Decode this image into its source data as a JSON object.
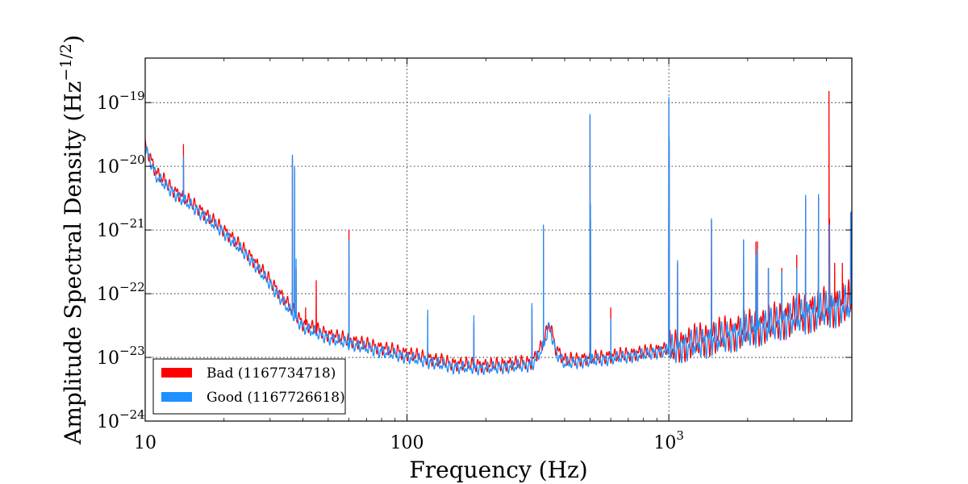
{
  "chart_data": {
    "type": "line",
    "xlabel": "Frequency (Hz)",
    "ylabel": "Amplitude Spectral Density (Hz",
    "ylabel_exponent": "−1/2",
    "ylabel_suffix": ")",
    "x_scale": "log",
    "y_scale": "log",
    "xlim": [
      10,
      5000
    ],
    "ylim": [
      1e-24,
      5e-19
    ],
    "grid": true,
    "legend_position": "lower-left",
    "x_ticks": [
      {
        "value": 10,
        "label": "10"
      },
      {
        "value": 100,
        "label": "100"
      },
      {
        "value": 1000,
        "label": "10",
        "sup": "3"
      }
    ],
    "y_ticks": [
      {
        "value": 1e-24,
        "label": "10",
        "sup": "−24"
      },
      {
        "value": 1e-23,
        "label": "10",
        "sup": "−23"
      },
      {
        "value": 1e-22,
        "label": "10",
        "sup": "−22"
      },
      {
        "value": 1e-21,
        "label": "10",
        "sup": "−21"
      },
      {
        "value": 1e-20,
        "label": "10",
        "sup": "−20"
      },
      {
        "value": 1e-19,
        "label": "10",
        "sup": "−19"
      }
    ],
    "series": [
      {
        "name": "Bad (1167734718)",
        "color": "#ff0000",
        "baseline": [
          [
            10,
            2.2e-20
          ],
          [
            11,
            8e-21
          ],
          [
            13,
            4e-21
          ],
          [
            15,
            2.7e-21
          ],
          [
            20,
            1e-21
          ],
          [
            25,
            4e-22
          ],
          [
            30,
            1.6e-22
          ],
          [
            35,
            7e-23
          ],
          [
            40,
            3.4e-23
          ],
          [
            50,
            2.3e-23
          ],
          [
            70,
            1.6e-23
          ],
          [
            100,
            1.15e-23
          ],
          [
            150,
            8e-24
          ],
          [
            200,
            7.5e-24
          ],
          [
            300,
            8.5e-24
          ],
          [
            330,
            1.6e-23
          ],
          [
            350,
            3.5e-23
          ],
          [
            370,
            1.4e-23
          ],
          [
            400,
            9e-24
          ],
          [
            600,
            1.05e-23
          ],
          [
            800,
            1.2e-23
          ],
          [
            1000,
            1.4e-23
          ],
          [
            1200,
            1.7e-23
          ],
          [
            1500,
            2.1e-23
          ],
          [
            2000,
            2.8e-23
          ],
          [
            2500,
            3.5e-23
          ],
          [
            3000,
            4.5e-23
          ],
          [
            4000,
            6e-23
          ],
          [
            5000,
            7.5e-23
          ]
        ],
        "lines": [
          [
            14,
            2.2e-20
          ],
          [
            36.5,
            1.4e-20
          ],
          [
            37.2,
            9e-21
          ],
          [
            37.7,
            2.5e-22
          ],
          [
            41,
            6e-23
          ],
          [
            45,
            1.6e-22
          ],
          [
            60,
            1e-21
          ],
          [
            120,
            4.5e-23
          ],
          [
            180,
            3.5e-23
          ],
          [
            300,
            6e-23
          ],
          [
            331.9,
            1.1e-21
          ],
          [
            500,
            6e-20
          ],
          [
            502,
            1.5e-21
          ],
          [
            600,
            6e-23
          ],
          [
            1000,
            1.1e-19
          ],
          [
            1003,
            2.5e-20
          ],
          [
            1080,
            3e-22
          ],
          [
            1455,
            1.4e-21
          ],
          [
            1930,
            7e-22
          ],
          [
            2150,
            6.5e-22
          ],
          [
            2180,
            6.5e-22
          ],
          [
            2400,
            2.5e-22
          ],
          [
            2700,
            2.5e-22
          ],
          [
            3080,
            4e-22
          ],
          [
            3330,
            3e-21
          ],
          [
            3730,
            3.2e-21
          ],
          [
            4090,
            1.5e-19
          ],
          [
            4110,
            1.5e-21
          ],
          [
            4300,
            3e-22
          ],
          [
            4600,
            3e-22
          ],
          [
            4950,
            1.8e-21
          ],
          [
            5000,
            2e-21
          ]
        ]
      },
      {
        "name": "Good (1167726618)",
        "color": "#1e90ff",
        "baseline": [
          [
            10,
            2e-20
          ],
          [
            11,
            7e-21
          ],
          [
            13,
            3.6e-21
          ],
          [
            15,
            2.4e-21
          ],
          [
            20,
            9e-22
          ],
          [
            25,
            3.6e-22
          ],
          [
            30,
            1.4e-22
          ],
          [
            35,
            6e-23
          ],
          [
            40,
            3e-23
          ],
          [
            50,
            2e-23
          ],
          [
            70,
            1.4e-23
          ],
          [
            100,
            1e-23
          ],
          [
            150,
            7e-24
          ],
          [
            200,
            6.7e-24
          ],
          [
            300,
            7.5e-24
          ],
          [
            330,
            1.4e-23
          ],
          [
            350,
            3.2e-23
          ],
          [
            370,
            1.2e-23
          ],
          [
            400,
            8e-24
          ],
          [
            600,
            9.5e-24
          ],
          [
            800,
            1.1e-23
          ],
          [
            1000,
            1.3e-23
          ],
          [
            1200,
            1.55e-23
          ],
          [
            1500,
            1.9e-23
          ],
          [
            2000,
            2.5e-23
          ],
          [
            2500,
            3.2e-23
          ],
          [
            3000,
            4.1e-23
          ],
          [
            4000,
            5.5e-23
          ],
          [
            5000,
            7e-23
          ]
        ],
        "lines": [
          [
            14,
            1.4e-20
          ],
          [
            36.5,
            1.5e-20
          ],
          [
            37.2,
            1e-20
          ],
          [
            37.7,
            3.5e-22
          ],
          [
            60,
            7e-22
          ],
          [
            120,
            5.5e-23
          ],
          [
            180,
            4.5e-23
          ],
          [
            300,
            7e-23
          ],
          [
            331.9,
            1.2e-21
          ],
          [
            500,
            6.5e-20
          ],
          [
            502,
            2.5e-21
          ],
          [
            600,
            4e-23
          ],
          [
            1000,
            1.2e-19
          ],
          [
            1003,
            3e-20
          ],
          [
            1080,
            3.3e-22
          ],
          [
            1455,
            1.5e-21
          ],
          [
            1930,
            7e-22
          ],
          [
            2150,
            4e-22
          ],
          [
            2180,
            5e-22
          ],
          [
            2400,
            2.5e-22
          ],
          [
            2700,
            2.2e-22
          ],
          [
            3080,
            2.5e-22
          ],
          [
            3330,
            3.5e-21
          ],
          [
            3730,
            3.6e-21
          ],
          [
            4110,
            1.2e-21
          ],
          [
            4950,
            1.9e-21
          ],
          [
            5000,
            2.1e-21
          ]
        ]
      }
    ]
  }
}
